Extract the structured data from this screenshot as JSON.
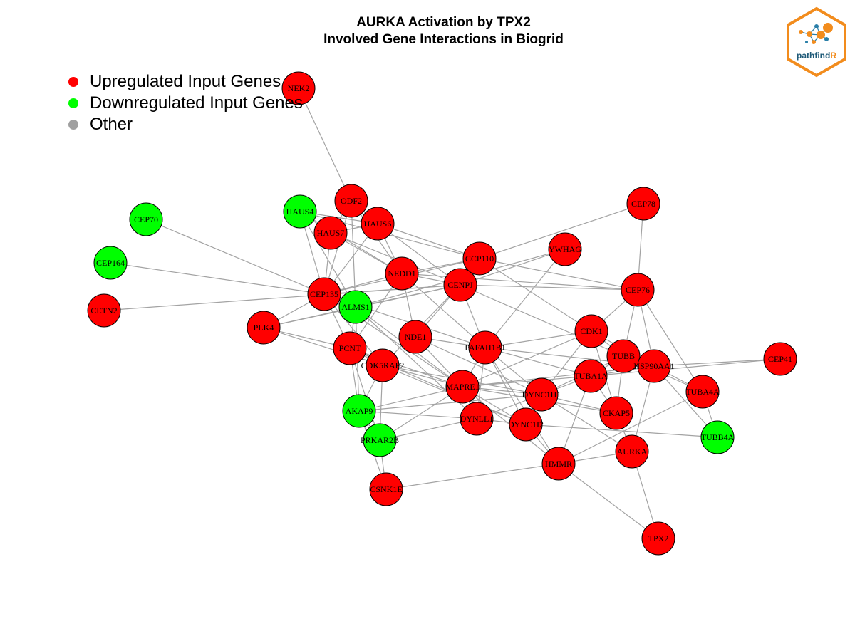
{
  "title": {
    "line1": "AURKA Activation by TPX2",
    "line2": "Involved Gene Interactions in Biogrid"
  },
  "legend": [
    {
      "label": "Upregulated Input Genes",
      "color": "#ff0000"
    },
    {
      "label": "Downregulated Input Genes",
      "color": "#00ff00"
    },
    {
      "label": "Other",
      "color": "#a0a0a0"
    }
  ],
  "logo": {
    "text_main": "pathfind",
    "text_accent": "R",
    "border_color": "#f28c1d",
    "primary_color": "#1f5a78"
  },
  "colors": {
    "up": "#ff0000",
    "down": "#00ff00",
    "other": "#a0a0a0",
    "edge": "#a3a3a3"
  },
  "graph": {
    "nodes": [
      {
        "id": "NEK2",
        "status": "up"
      },
      {
        "id": "ODF2",
        "status": "up"
      },
      {
        "id": "HAUS4",
        "status": "down"
      },
      {
        "id": "HAUS6",
        "status": "up"
      },
      {
        "id": "HAUS7",
        "status": "up"
      },
      {
        "id": "CEP70",
        "status": "down"
      },
      {
        "id": "CEP164",
        "status": "down"
      },
      {
        "id": "CETN2",
        "status": "up"
      },
      {
        "id": "CEP135",
        "status": "up"
      },
      {
        "id": "ALMS1",
        "status": "down"
      },
      {
        "id": "PLK4",
        "status": "up"
      },
      {
        "id": "PCNT",
        "status": "up"
      },
      {
        "id": "CDK5RAP2",
        "status": "up"
      },
      {
        "id": "NDE1",
        "status": "up"
      },
      {
        "id": "NEDD1",
        "status": "up"
      },
      {
        "id": "CENPJ",
        "status": "up"
      },
      {
        "id": "CCP110",
        "status": "up"
      },
      {
        "id": "YWHAG",
        "status": "up"
      },
      {
        "id": "CEP78",
        "status": "up"
      },
      {
        "id": "CEP76",
        "status": "up"
      },
      {
        "id": "PAFAH1B1",
        "status": "up"
      },
      {
        "id": "CDK1",
        "status": "up"
      },
      {
        "id": "TUBB",
        "status": "up"
      },
      {
        "id": "HSP90AA1",
        "status": "up"
      },
      {
        "id": "CEP41",
        "status": "up"
      },
      {
        "id": "TUBA1A",
        "status": "up"
      },
      {
        "id": "TUBA4A",
        "status": "up"
      },
      {
        "id": "MAPRE1",
        "status": "up"
      },
      {
        "id": "DYNC1H1",
        "status": "up"
      },
      {
        "id": "AKAP9",
        "status": "down"
      },
      {
        "id": "DYNLL1",
        "status": "up"
      },
      {
        "id": "DYNC1I2",
        "status": "up"
      },
      {
        "id": "CKAP5",
        "status": "up"
      },
      {
        "id": "TUBB4A",
        "status": "down"
      },
      {
        "id": "PRKAR2B",
        "status": "down"
      },
      {
        "id": "AURKA",
        "status": "up"
      },
      {
        "id": "HMMR",
        "status": "up"
      },
      {
        "id": "CSNK1E",
        "status": "up"
      },
      {
        "id": "TPX2",
        "status": "up"
      }
    ],
    "edges": [
      [
        "NEK2",
        "ODF2"
      ],
      [
        "ODF2",
        "HAUS6"
      ],
      [
        "ODF2",
        "HAUS7"
      ],
      [
        "ODF2",
        "CEP135"
      ],
      [
        "ODF2",
        "NEDD1"
      ],
      [
        "ODF2",
        "ALMS1"
      ],
      [
        "HAUS4",
        "HAUS6"
      ],
      [
        "HAUS4",
        "HAUS7"
      ],
      [
        "HAUS4",
        "NEDD1"
      ],
      [
        "HAUS4",
        "CCP110"
      ],
      [
        "HAUS4",
        "CEP135"
      ],
      [
        "HAUS4",
        "ALMS1"
      ],
      [
        "HAUS6",
        "HAUS7"
      ],
      [
        "HAUS6",
        "NEDD1"
      ],
      [
        "HAUS6",
        "CCP110"
      ],
      [
        "HAUS6",
        "CEP135"
      ],
      [
        "HAUS6",
        "CENPJ"
      ],
      [
        "HAUS7",
        "NEDD1"
      ],
      [
        "HAUS7",
        "CEP135"
      ],
      [
        "HAUS7",
        "CENPJ"
      ],
      [
        "CEP70",
        "CEP135"
      ],
      [
        "CEP164",
        "CEP135"
      ],
      [
        "CETN2",
        "CENPJ"
      ],
      [
        "CEP135",
        "ALMS1"
      ],
      [
        "CEP135",
        "NEDD1"
      ],
      [
        "CEP135",
        "CENPJ"
      ],
      [
        "CEP135",
        "CCP110"
      ],
      [
        "CEP135",
        "PLK4"
      ],
      [
        "CEP135",
        "PCNT"
      ],
      [
        "CEP135",
        "CDK5RAP2"
      ],
      [
        "CEP135",
        "PAFAH1B1"
      ],
      [
        "CEP135",
        "MAPRE1"
      ],
      [
        "ALMS1",
        "CENPJ"
      ],
      [
        "ALMS1",
        "PLK4"
      ],
      [
        "ALMS1",
        "AKAP9"
      ],
      [
        "ALMS1",
        "MAPRE1"
      ],
      [
        "ALMS1",
        "PCNT"
      ],
      [
        "ALMS1",
        "YWHAG"
      ],
      [
        "ALMS1",
        "DYNLL1"
      ],
      [
        "PLK4",
        "PCNT"
      ],
      [
        "PLK4",
        "CDK5RAP2"
      ],
      [
        "PLK4",
        "CENPJ"
      ],
      [
        "PCNT",
        "CDK5RAP2"
      ],
      [
        "PCNT",
        "AKAP9"
      ],
      [
        "PCNT",
        "MAPRE1"
      ],
      [
        "PCNT",
        "PRKAR2B"
      ],
      [
        "PCNT",
        "NEDD1"
      ],
      [
        "PCNT",
        "DYNC1I2"
      ],
      [
        "CDK5RAP2",
        "MAPRE1"
      ],
      [
        "CDK5RAP2",
        "AKAP9"
      ],
      [
        "CDK5RAP2",
        "PRKAR2B"
      ],
      [
        "CDK5RAP2",
        "CENPJ"
      ],
      [
        "CDK5RAP2",
        "DYNC1H1"
      ],
      [
        "CDK5RAP2",
        "DYNC1I2"
      ],
      [
        "NDE1",
        "PAFAH1B1"
      ],
      [
        "NDE1",
        "NEDD1"
      ],
      [
        "NDE1",
        "CENPJ"
      ],
      [
        "NDE1",
        "MAPRE1"
      ],
      [
        "NDE1",
        "DYNC1H1"
      ],
      [
        "NEDD1",
        "CENPJ"
      ],
      [
        "NEDD1",
        "CCP110"
      ],
      [
        "NEDD1",
        "CEP76"
      ],
      [
        "NEDD1",
        "PAFAH1B1"
      ],
      [
        "CENPJ",
        "CCP110"
      ],
      [
        "CENPJ",
        "CEP76"
      ],
      [
        "CENPJ",
        "YWHAG"
      ],
      [
        "CENPJ",
        "TUBB"
      ],
      [
        "CENPJ",
        "PAFAH1B1"
      ],
      [
        "CCP110",
        "CEP76"
      ],
      [
        "CCP110",
        "CEP78"
      ],
      [
        "CCP110",
        "CDK1"
      ],
      [
        "YWHAG",
        "PAFAH1B1"
      ],
      [
        "CEP78",
        "CEP76"
      ],
      [
        "CEP76",
        "CDK1"
      ],
      [
        "CEP76",
        "TUBB"
      ],
      [
        "CEP76",
        "HSP90AA1"
      ],
      [
        "CEP76",
        "TUBA4A"
      ],
      [
        "PAFAH1B1",
        "CDK1"
      ],
      [
        "PAFAH1B1",
        "MAPRE1"
      ],
      [
        "PAFAH1B1",
        "DYNC1H1"
      ],
      [
        "PAFAH1B1",
        "DYNLL1"
      ],
      [
        "PAFAH1B1",
        "DYNC1I2"
      ],
      [
        "PAFAH1B1",
        "TUBA1A"
      ],
      [
        "PAFAH1B1",
        "HSP90AA1"
      ],
      [
        "PAFAH1B1",
        "HMMR"
      ],
      [
        "CDK1",
        "TUBB"
      ],
      [
        "CDK1",
        "HSP90AA1"
      ],
      [
        "CDK1",
        "MAPRE1"
      ],
      [
        "CDK1",
        "CKAP5"
      ],
      [
        "CDK1",
        "DYNC1H1"
      ],
      [
        "TUBB",
        "HSP90AA1"
      ],
      [
        "TUBB",
        "TUBA1A"
      ],
      [
        "TUBB",
        "CKAP5"
      ],
      [
        "TUBB",
        "DYNC1H1"
      ],
      [
        "TUBB",
        "TUBA4A"
      ],
      [
        "HSP90AA1",
        "CEP41"
      ],
      [
        "HSP90AA1",
        "TUBA1A"
      ],
      [
        "HSP90AA1",
        "TUBA4A"
      ],
      [
        "HSP90AA1",
        "TUBB4A"
      ],
      [
        "HSP90AA1",
        "MAPRE1"
      ],
      [
        "HSP90AA1",
        "AURKA"
      ],
      [
        "TUBA1A",
        "CEP41"
      ],
      [
        "TUBA1A",
        "MAPRE1"
      ],
      [
        "TUBA1A",
        "DYNC1H1"
      ],
      [
        "TUBA1A",
        "HMMR"
      ],
      [
        "TUBA1A",
        "CKAP5"
      ],
      [
        "TUBA4A",
        "TUBB4A"
      ],
      [
        "TUBA4A",
        "HMMR"
      ],
      [
        "MAPRE1",
        "DYNC1H1"
      ],
      [
        "MAPRE1",
        "DYNLL1"
      ],
      [
        "MAPRE1",
        "DYNC1I2"
      ],
      [
        "MAPRE1",
        "AKAP9"
      ],
      [
        "MAPRE1",
        "CKAP5"
      ],
      [
        "MAPRE1",
        "HMMR"
      ],
      [
        "MAPRE1",
        "PRKAR2B"
      ],
      [
        "DYNC1H1",
        "DYNLL1"
      ],
      [
        "DYNC1H1",
        "DYNC1I2"
      ],
      [
        "DYNC1H1",
        "CKAP5"
      ],
      [
        "DYNC1H1",
        "AURKA"
      ],
      [
        "DYNC1H1",
        "AKAP9"
      ],
      [
        "DYNLL1",
        "DYNC1I2"
      ],
      [
        "DYNLL1",
        "AKAP9"
      ],
      [
        "DYNLL1",
        "PRKAR2B"
      ],
      [
        "DYNC1I2",
        "HMMR"
      ],
      [
        "DYNC1I2",
        "TUBB4A"
      ],
      [
        "AKAP9",
        "PRKAR2B"
      ],
      [
        "AKAP9",
        "CSNK1E"
      ],
      [
        "PRKAR2B",
        "CSNK1E"
      ],
      [
        "AURKA",
        "HMMR"
      ],
      [
        "AURKA",
        "TPX2"
      ],
      [
        "AURKA",
        "CKAP5"
      ],
      [
        "HMMR",
        "CSNK1E"
      ],
      [
        "HMMR",
        "TPX2"
      ]
    ]
  }
}
